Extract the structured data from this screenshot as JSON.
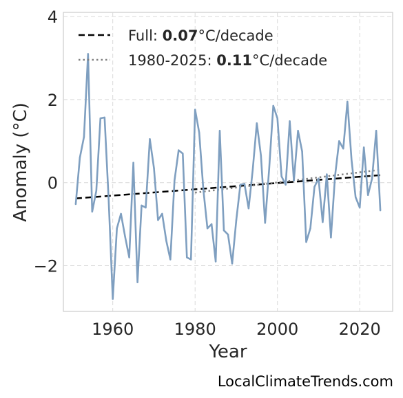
{
  "chart_data": {
    "type": "line",
    "title": "",
    "xlabel": "Year",
    "ylabel": "Anomaly (°C)",
    "xlim": [
      1948,
      2028
    ],
    "ylim": [
      -3.1,
      4.1
    ],
    "xticks": [
      1960,
      1980,
      2000,
      2020
    ],
    "yticks": [
      4,
      2,
      0,
      -2
    ],
    "ytick_labels": [
      "4",
      "2",
      "0",
      "−2"
    ],
    "grid": true,
    "legend_position": "top-left",
    "colors": {
      "series": "#7f9fc0",
      "full_trend": "#000000",
      "recent_trend": "#808080"
    },
    "series": [
      {
        "x": [
          1951,
          1952,
          1953,
          1954,
          1955,
          1956,
          1957,
          1958,
          1959,
          1960,
          1961,
          1962,
          1963,
          1964,
          1965,
          1966,
          1967,
          1968,
          1969,
          1970,
          1971,
          1972,
          1973,
          1974,
          1975,
          1976,
          1977,
          1978,
          1979,
          1980,
          1981,
          1982,
          1983,
          1984,
          1985,
          1986,
          1987,
          1988,
          1989,
          1990,
          1991,
          1992,
          1993,
          1994,
          1995,
          1996,
          1997,
          1998,
          1999,
          2000,
          2001,
          2002,
          2003,
          2004,
          2005,
          2006,
          2007,
          2008,
          2009,
          2010,
          2011,
          2012,
          2013,
          2014,
          2015,
          2016,
          2017,
          2018,
          2019,
          2020,
          2021,
          2022,
          2023,
          2024,
          2025
        ],
        "values": [
          -0.52,
          0.6,
          1.1,
          3.1,
          -0.7,
          -0.2,
          1.55,
          1.57,
          -0.4,
          -2.8,
          -1.1,
          -0.75,
          -1.3,
          -1.8,
          0.48,
          -2.4,
          -0.55,
          -0.6,
          1.05,
          0.35,
          -0.9,
          -0.75,
          -1.4,
          -1.85,
          0.05,
          0.78,
          0.7,
          -1.8,
          -1.85,
          1.76,
          1.2,
          -0.15,
          -1.1,
          -1.0,
          -1.9,
          1.25,
          -1.15,
          -1.25,
          -1.95,
          -0.9,
          -0.05,
          -0.03,
          -0.62,
          0.3,
          1.43,
          0.65,
          -0.97,
          0.35,
          1.85,
          1.55,
          0.15,
          -0.05,
          1.48,
          0.05,
          1.25,
          0.75,
          -1.43,
          -1.1,
          -0.1,
          0.1,
          -0.95,
          0.2,
          -1.32,
          0.15,
          1.0,
          0.82,
          1.95,
          0.55,
          -0.35,
          -0.6,
          0.85,
          -0.3,
          0.1,
          1.25,
          -0.67
        ]
      }
    ],
    "trends": [
      {
        "label_prefix": "Full: ",
        "rate": "0.07",
        "label_suffix": "°C/decade",
        "x": [
          1951,
          2025
        ],
        "y": [
          -0.38,
          0.18
        ],
        "style": "dashed"
      },
      {
        "label_prefix": "1980-2025: ",
        "rate": "0.11",
        "label_suffix": "°C/decade",
        "x": [
          1980,
          2025
        ],
        "y": [
          -0.24,
          0.31
        ],
        "style": "dotted"
      }
    ]
  },
  "watermark": "LocalClimateTrends.com"
}
